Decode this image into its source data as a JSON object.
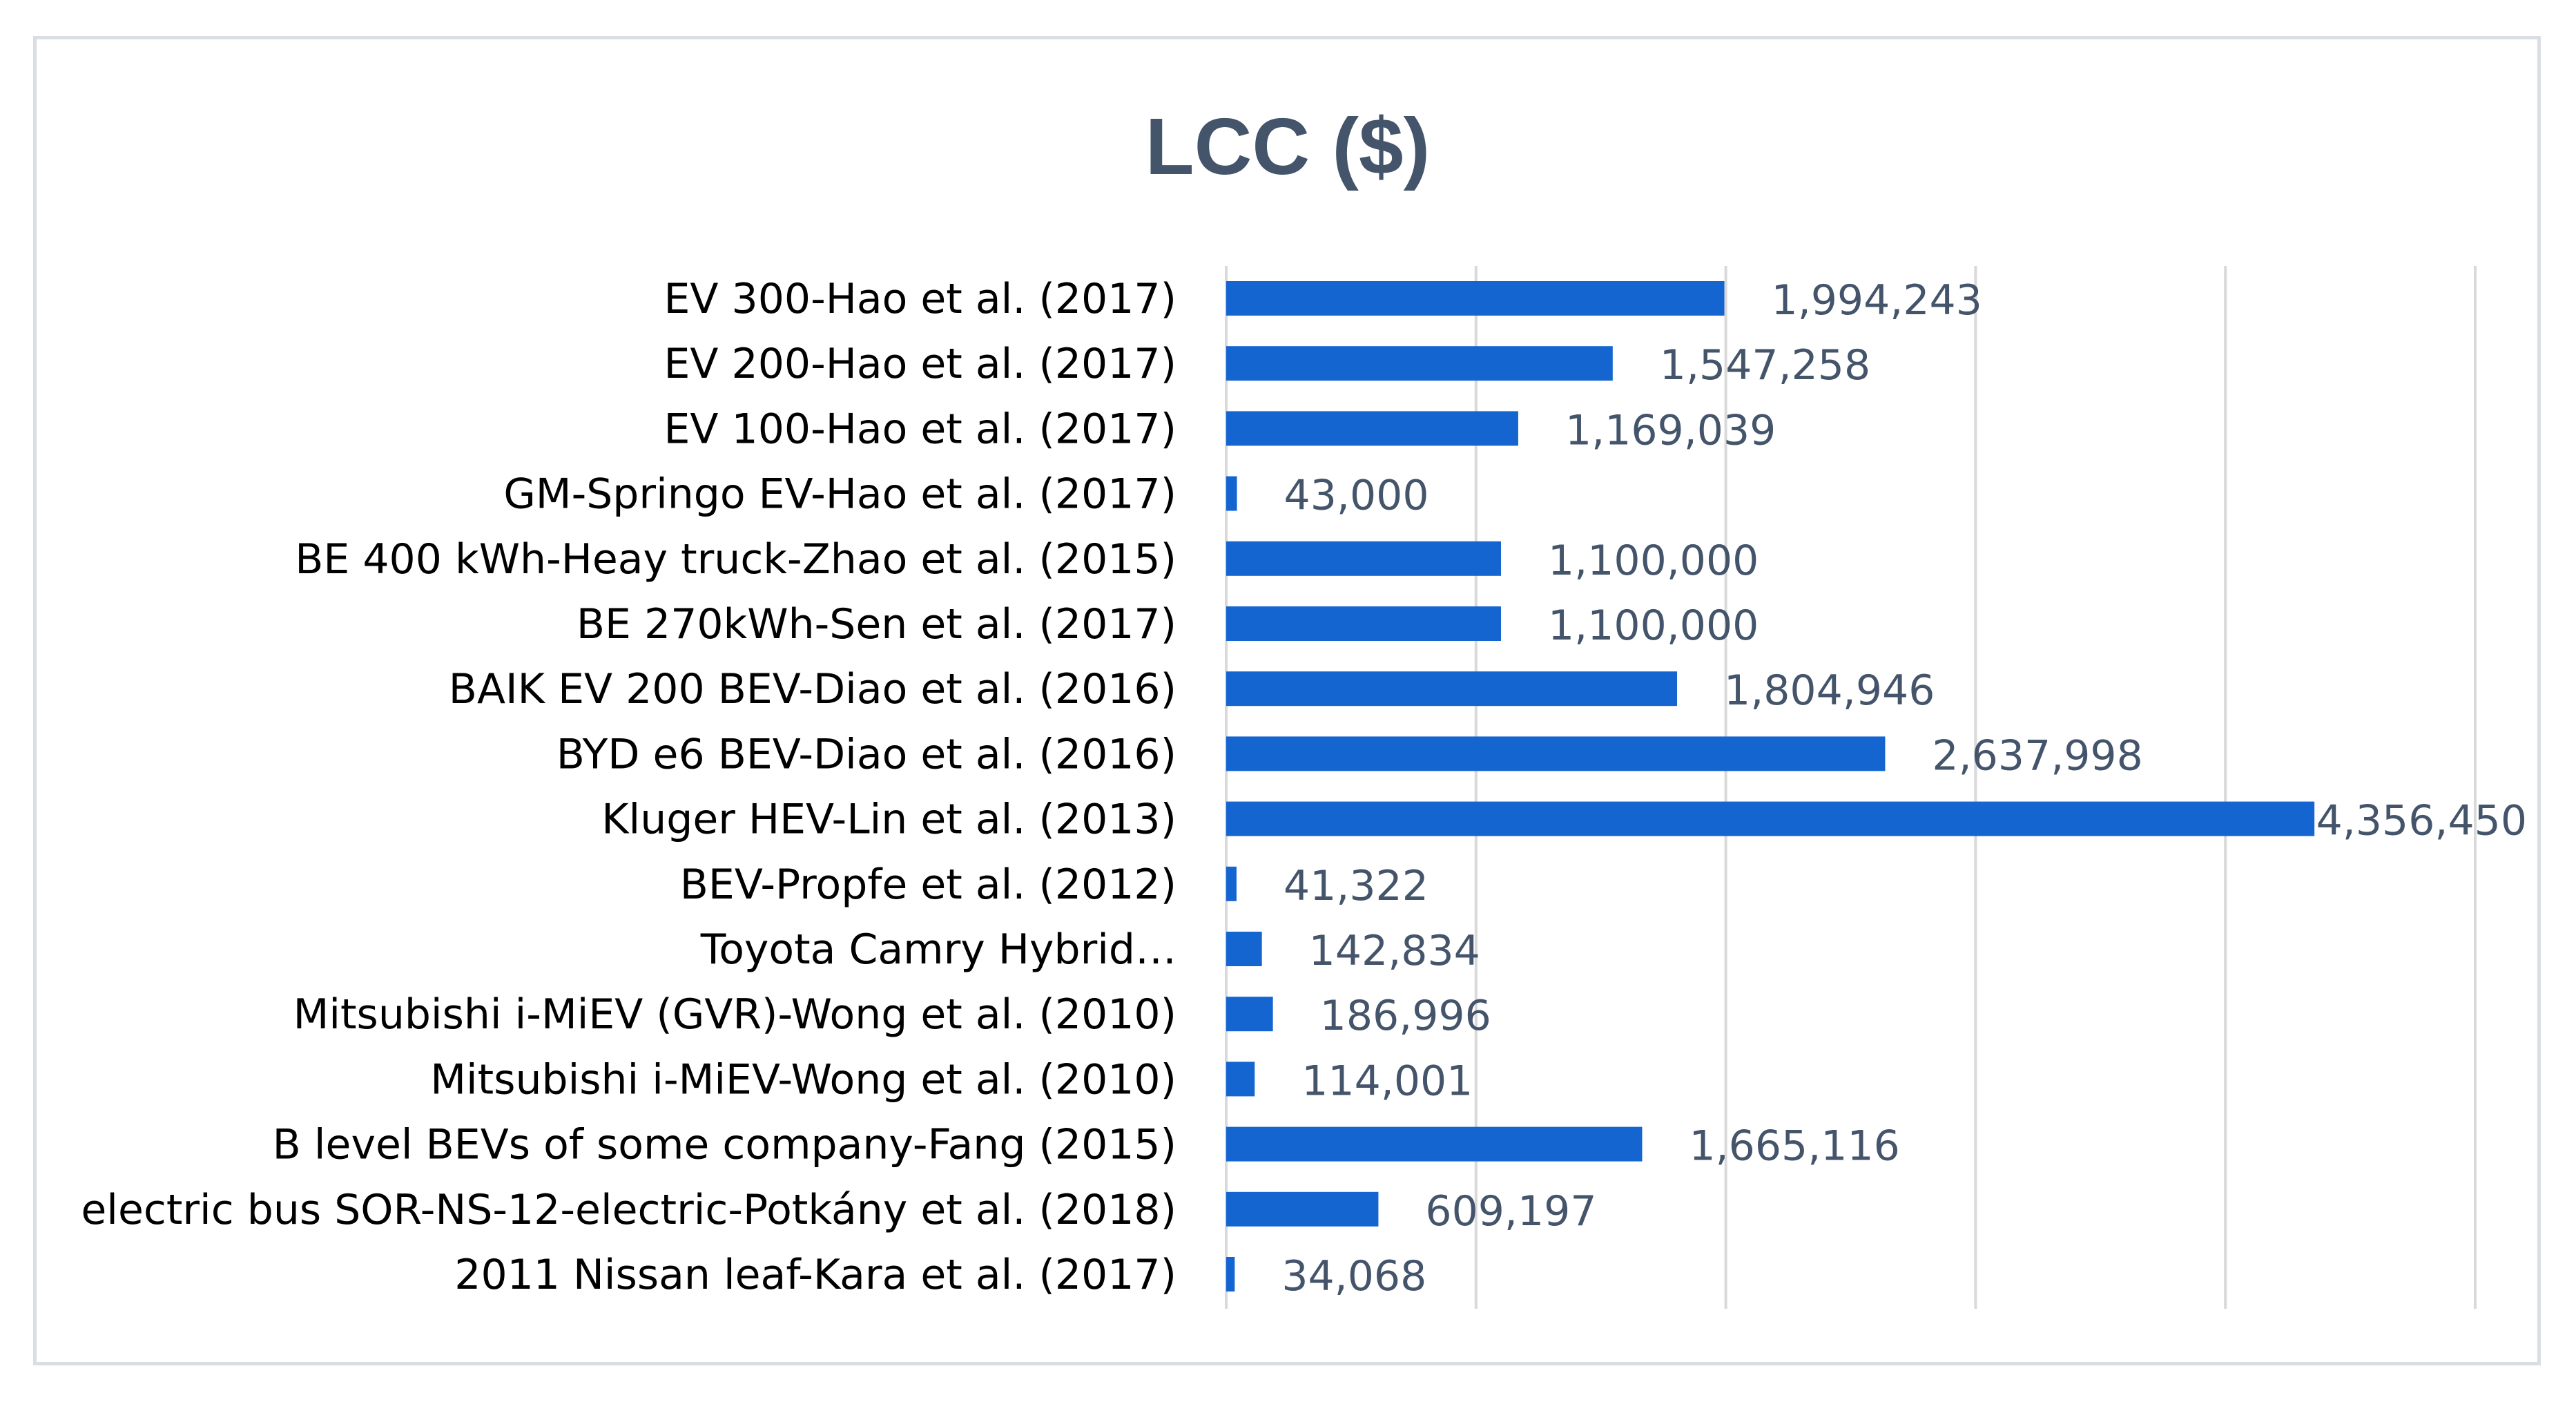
{
  "chart_data": {
    "type": "bar",
    "orientation": "horizontal",
    "title": "LCC ($)",
    "xlabel": "",
    "ylabel": "",
    "xlim": [
      0,
      5000000
    ],
    "grid": true,
    "legend": "none",
    "bar_color": "#1565d0",
    "categories": [
      "EV 300-Hao et al. (2017)",
      "EV 200-Hao et al. (2017)",
      "EV 100-Hao et al. (2017)",
      "GM-Springo EV-Hao et al. (2017)",
      "BE 400 kWh-Heay truck-Zhao et al. (2015)",
      "BE 270kWh-Sen et al. (2017)",
      "BAIK EV 200 BEV-Diao et al. (2016)",
      "BYD e6 BEV-Diao et al. (2016)",
      "Kluger HEV-Lin et al. (2013)",
      "BEV-Propfe et al. (2012)",
      "Toyota Camry Hybrid…",
      "Mitsubishi i-MiEV (GVR)-Wong et al. (2010)",
      "Mitsubishi i-MiEV-Wong et al. (2010)",
      "B level BEVs of some company-Fang (2015)",
      "electric bus SOR-NS-12-electric-Potkány et al. (2018)",
      "2011 Nissan leaf-Kara et al. (2017)"
    ],
    "values": [
      1994243,
      1547258,
      1169039,
      43000,
      1100000,
      1100000,
      1804946,
      2637998,
      4356450,
      41322,
      142834,
      186996,
      114001,
      1665116,
      609197,
      34068
    ],
    "data_labels": [
      "1,994,243",
      "1,547,258",
      "1,169,039",
      "43,000",
      "1,100,000",
      "1,100,000",
      "1,804,946",
      "2,637,998",
      "4,356,450",
      "41,322",
      "142,834",
      "186,996",
      "114,001",
      "1,665,116",
      "609,197",
      "34,068"
    ]
  }
}
